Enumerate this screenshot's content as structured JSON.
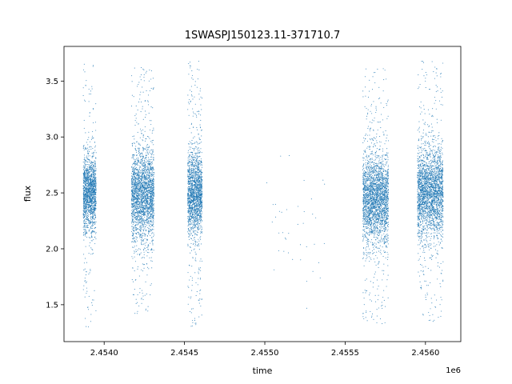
{
  "chart_data": {
    "type": "scatter",
    "title": "1SWASPJ150123.11-371710.7",
    "xlabel": "time",
    "ylabel": "flux",
    "x_offset_label": "1e6",
    "x_scale_factor": 1000000,
    "xlim": [
      2453750,
      2456220
    ],
    "ylim": [
      1.17,
      3.81
    ],
    "xticks": [
      2454000,
      2454500,
      2455000,
      2455500,
      2456000
    ],
    "xtick_labels": [
      "2.4540",
      "2.4545",
      "2.4550",
      "2.4555",
      "2.4560"
    ],
    "yticks": [
      1.5,
      2.0,
      2.5,
      3.0,
      3.5
    ],
    "ytick_labels": [
      "1.5",
      "2.0",
      "2.5",
      "3.0",
      "3.5"
    ],
    "grid": false,
    "point_color": "#1f77b4",
    "series": [
      {
        "x_range": [
          2453870,
          2453950
        ],
        "y_center": 2.5,
        "y_spread": 0.17,
        "y_min": 1.3,
        "y_max": 3.67,
        "count": 1600
      },
      {
        "x_range": [
          2454170,
          2454310
        ],
        "y_center": 2.48,
        "y_spread": 0.2,
        "y_min": 1.42,
        "y_max": 3.62,
        "count": 2400
      },
      {
        "x_range": [
          2454520,
          2454610
        ],
        "y_center": 2.5,
        "y_spread": 0.19,
        "y_min": 1.3,
        "y_max": 3.68,
        "count": 1800
      },
      {
        "x_range": [
          2455000,
          2455380
        ],
        "y_center": 2.2,
        "y_spread": 0.25,
        "y_min": 1.22,
        "y_max": 3.0,
        "count": 40
      },
      {
        "x_range": [
          2455610,
          2455770
        ],
        "y_center": 2.45,
        "y_spread": 0.2,
        "y_min": 1.32,
        "y_max": 3.62,
        "count": 2600
      },
      {
        "x_range": [
          2455950,
          2456110
        ],
        "y_center": 2.5,
        "y_spread": 0.2,
        "y_min": 1.32,
        "y_max": 3.68,
        "count": 2600
      }
    ]
  }
}
